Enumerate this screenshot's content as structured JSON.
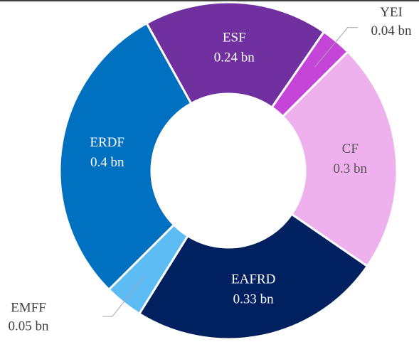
{
  "chart_data": {
    "type": "donut",
    "categories": [
      "ESF",
      "YEI",
      "CF",
      "EAFRD",
      "EMFF",
      "ERDF"
    ],
    "values": [
      0.24,
      0.04,
      0.3,
      0.33,
      0.05,
      0.4
    ],
    "value_labels": [
      "0.24 bn",
      "0.04 bn",
      "0.3 bn",
      "0.33 bn",
      "0.05 bn",
      "0.4 bn"
    ],
    "colors": [
      "#7030a0",
      "#c545d8",
      "#efb1ee",
      "#002060",
      "#5ebcf5",
      "#0070c0"
    ]
  }
}
